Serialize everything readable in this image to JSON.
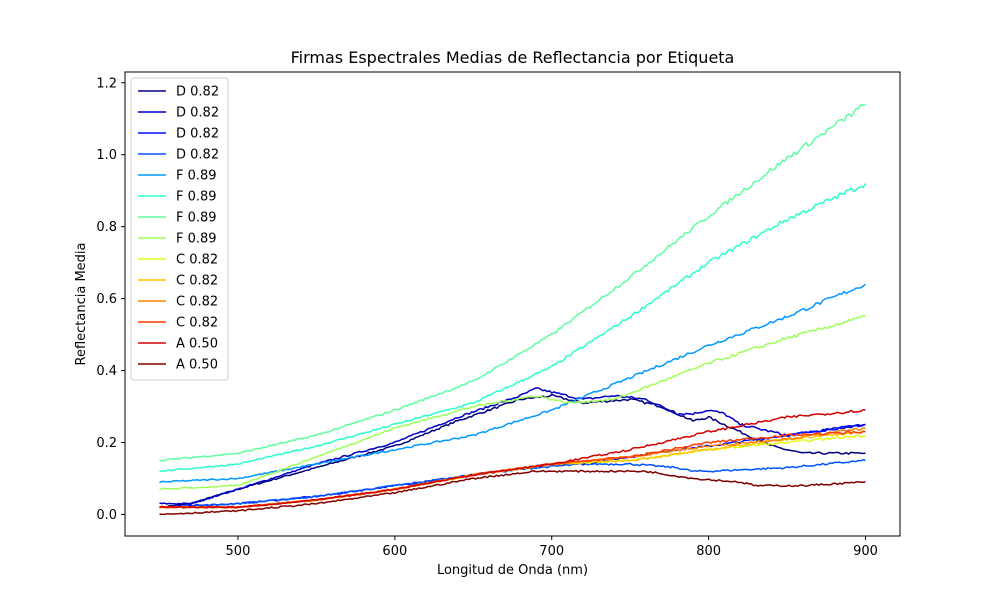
{
  "chart_data": {
    "type": "line",
    "title": "Firmas Espectrales Medias de Reflectancia por Etiqueta",
    "xlabel": "Longitud de Onda (nm)",
    "ylabel": "Reflectancia Media",
    "xlim": [
      428,
      922
    ],
    "ylim": [
      -0.06,
      1.23
    ],
    "xticks": [
      500,
      600,
      700,
      800,
      900
    ],
    "yticks": [
      0.0,
      0.2,
      0.4,
      0.6,
      0.8,
      1.0,
      1.2
    ],
    "xtick_labels": [
      "500",
      "600",
      "700",
      "800",
      "900"
    ],
    "ytick_labels": [
      "0.0",
      "0.2",
      "0.4",
      "0.6",
      "0.8",
      "1.0",
      "1.2"
    ],
    "grid": false,
    "legend_position": "top-left",
    "series": [
      {
        "name": "D 0.82",
        "color": "#00007f",
        "x": [
          450,
          470,
          500,
          550,
          600,
          640,
          680,
          700,
          720,
          750,
          770,
          790,
          800,
          810,
          820,
          840,
          860,
          880,
          900
        ],
        "y": [
          0.02,
          0.03,
          0.07,
          0.13,
          0.19,
          0.26,
          0.32,
          0.33,
          0.31,
          0.32,
          0.3,
          0.26,
          0.27,
          0.25,
          0.23,
          0.19,
          0.17,
          0.17,
          0.17
        ]
      },
      {
        "name": "D 0.82",
        "color": "#0000c4",
        "x": [
          450,
          470,
          500,
          550,
          600,
          640,
          680,
          690,
          700,
          720,
          740,
          760,
          780,
          790,
          800,
          810,
          820,
          850,
          900
        ],
        "y": [
          0.03,
          0.03,
          0.07,
          0.14,
          0.2,
          0.27,
          0.33,
          0.35,
          0.34,
          0.32,
          0.33,
          0.32,
          0.28,
          0.28,
          0.29,
          0.28,
          0.25,
          0.22,
          0.25
        ]
      },
      {
        "name": "D 0.82",
        "color": "#0010ff",
        "x": [
          450,
          500,
          550,
          600,
          650,
          700,
          720,
          750,
          780,
          800,
          850,
          900
        ],
        "y": [
          0.02,
          0.03,
          0.05,
          0.08,
          0.11,
          0.14,
          0.14,
          0.16,
          0.18,
          0.19,
          0.22,
          0.25
        ]
      },
      {
        "name": "D 0.82",
        "color": "#0054ff",
        "x": [
          450,
          500,
          550,
          600,
          650,
          690,
          720,
          750,
          780,
          790,
          800,
          850,
          900
        ],
        "y": [
          0.02,
          0.03,
          0.05,
          0.08,
          0.11,
          0.13,
          0.14,
          0.14,
          0.13,
          0.12,
          0.12,
          0.13,
          0.15
        ]
      },
      {
        "name": "F 0.89",
        "color": "#0098ff",
        "x": [
          450,
          500,
          550,
          600,
          650,
          700,
          750,
          800,
          850,
          900
        ],
        "y": [
          0.09,
          0.1,
          0.14,
          0.18,
          0.22,
          0.29,
          0.38,
          0.47,
          0.55,
          0.64
        ]
      },
      {
        "name": "F 0.89",
        "color": "#29ffce",
        "x": [
          450,
          500,
          550,
          600,
          650,
          700,
          750,
          800,
          850,
          900
        ],
        "y": [
          0.12,
          0.14,
          0.19,
          0.25,
          0.31,
          0.41,
          0.55,
          0.7,
          0.82,
          0.92
        ]
      },
      {
        "name": "F 0.89",
        "color": "#5dffa1",
        "x": [
          450,
          500,
          550,
          600,
          650,
          700,
          750,
          800,
          850,
          900
        ],
        "y": [
          0.15,
          0.17,
          0.22,
          0.29,
          0.37,
          0.5,
          0.66,
          0.83,
          0.99,
          1.14
        ]
      },
      {
        "name": "F 0.89",
        "color": "#9eff5a",
        "x": [
          450,
          500,
          550,
          600,
          650,
          690,
          710,
          740,
          770,
          800,
          850,
          900
        ],
        "y": [
          0.07,
          0.08,
          0.16,
          0.24,
          0.3,
          0.33,
          0.31,
          0.32,
          0.37,
          0.42,
          0.49,
          0.55
        ]
      },
      {
        "name": "C 0.82",
        "color": "#e1ff16",
        "x": [
          450,
          500,
          550,
          600,
          650,
          700,
          750,
          800,
          850,
          900
        ],
        "y": [
          0.02,
          0.02,
          0.04,
          0.07,
          0.11,
          0.14,
          0.15,
          0.18,
          0.2,
          0.22
        ]
      },
      {
        "name": "C 0.82",
        "color": "#ffc400",
        "x": [
          450,
          500,
          550,
          600,
          650,
          700,
          750,
          800,
          850,
          900
        ],
        "y": [
          0.02,
          0.02,
          0.04,
          0.07,
          0.11,
          0.14,
          0.15,
          0.18,
          0.21,
          0.23
        ]
      },
      {
        "name": "C 0.82",
        "color": "#ff8200",
        "x": [
          450,
          500,
          550,
          600,
          650,
          700,
          750,
          800,
          850,
          900
        ],
        "y": [
          0.02,
          0.02,
          0.04,
          0.07,
          0.11,
          0.14,
          0.16,
          0.19,
          0.21,
          0.24
        ]
      },
      {
        "name": "C 0.82",
        "color": "#ff3a00",
        "x": [
          450,
          500,
          550,
          600,
          650,
          700,
          750,
          800,
          850,
          900
        ],
        "y": [
          0.02,
          0.02,
          0.04,
          0.07,
          0.11,
          0.14,
          0.16,
          0.2,
          0.22,
          0.23
        ]
      },
      {
        "name": "A 0.50",
        "color": "#d30000",
        "x": [
          450,
          500,
          550,
          600,
          650,
          700,
          750,
          800,
          850,
          900
        ],
        "y": [
          0.02,
          0.02,
          0.04,
          0.07,
          0.11,
          0.14,
          0.18,
          0.23,
          0.27,
          0.29
        ]
      },
      {
        "name": "A 0.50",
        "color": "#7f0000",
        "x": [
          450,
          500,
          550,
          600,
          650,
          690,
          720,
          760,
          790,
          820,
          830,
          860,
          900
        ],
        "y": [
          0.0,
          0.01,
          0.03,
          0.06,
          0.1,
          0.12,
          0.12,
          0.12,
          0.1,
          0.09,
          0.08,
          0.08,
          0.09
        ]
      }
    ]
  }
}
